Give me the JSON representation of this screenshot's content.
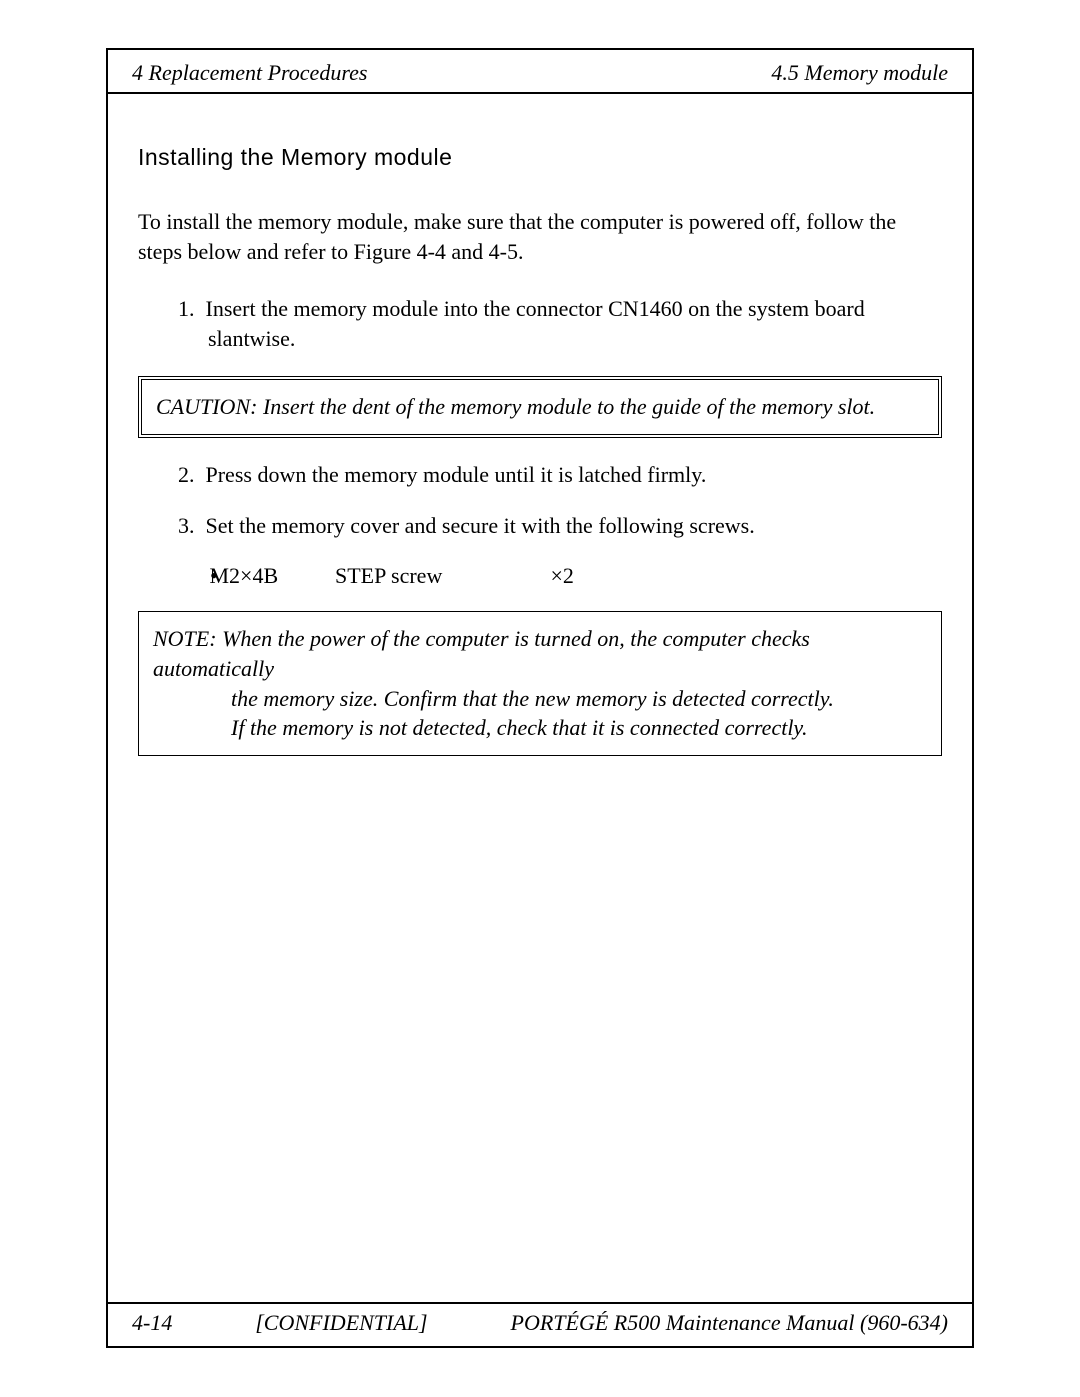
{
  "header": {
    "left": "4 Replacement Procedures",
    "right": "4.5  Memory module"
  },
  "section_title": "Installing the Memory module",
  "intro_para": "To install the memory module, make sure that the computer is powered off, follow the steps below and refer to Figure 4-4 and 4-5.",
  "steps": {
    "s1_num": "1.",
    "s1_text": "Insert the memory module into the connector CN1460 on the system board slantwise.",
    "s2_num": "2.",
    "s2_text": "Press down the memory module until it is latched firmly.",
    "s3_num": "3.",
    "s3_text": "Set the memory cover and secure it with the following screws."
  },
  "caution": {
    "label": "CAUTION:",
    "text": "  Insert the dent of the memory module to the guide of the memory slot."
  },
  "screw": {
    "bullet": "•",
    "col1": "M2×4B",
    "col2": "STEP screw",
    "col3": "×2"
  },
  "note": {
    "label": "NOTE:",
    "line1": "  When the power of the computer is turned on, the computer checks automatically",
    "line2": "the memory size. Confirm that the new memory is detected correctly.",
    "line3": "If the memory is not detected, check that it is connected correctly."
  },
  "footer": {
    "page": "4-14",
    "confidential": "[CONFIDENTIAL]",
    "manual": "PORTÉGÉ R500 Maintenance Manual (960-634)"
  },
  "colors": {
    "text": "#000000",
    "background": "#ffffff",
    "border": "#000000"
  },
  "typography": {
    "body_family": "Times New Roman",
    "heading_family": "Arial",
    "body_size_pt": 16,
    "heading_size_pt": 17
  }
}
